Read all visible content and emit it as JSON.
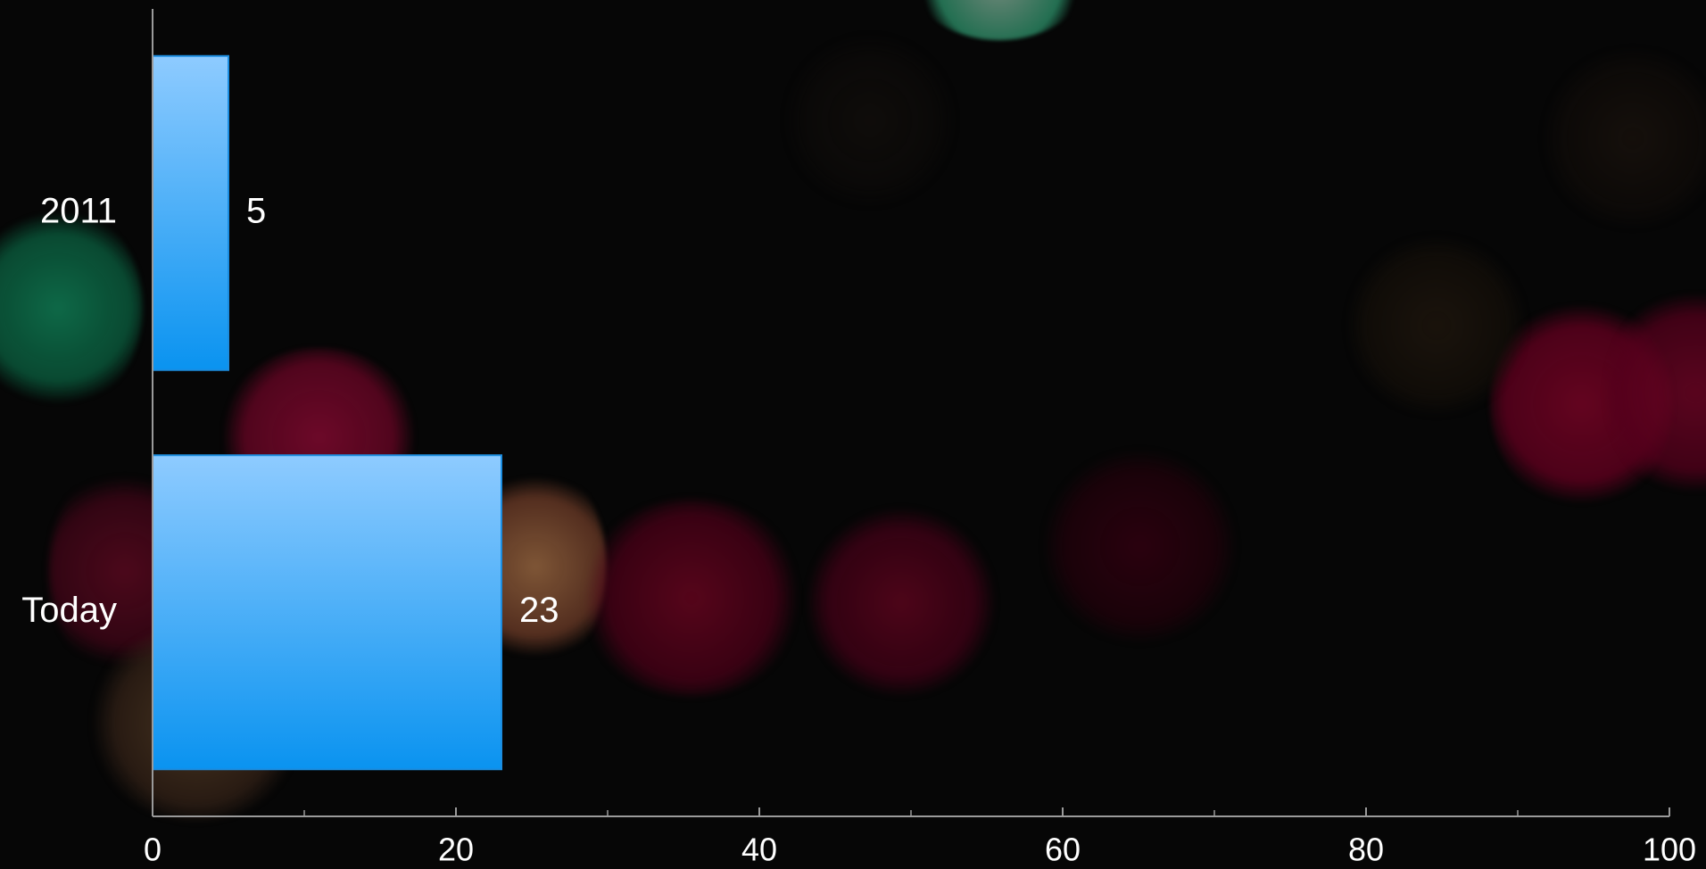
{
  "chart_data": {
    "type": "bar",
    "orientation": "horizontal",
    "categories": [
      "2011",
      "Today"
    ],
    "values": [
      5,
      23
    ],
    "data_labels": [
      "5",
      "23"
    ],
    "xlim": [
      0,
      100
    ],
    "x_ticks": [
      0,
      20,
      40,
      60,
      80,
      100
    ],
    "x_tick_labels": [
      "0",
      "20",
      "40",
      "60",
      "80",
      "100"
    ],
    "x_minor_ticks": [
      10,
      30,
      50,
      70,
      90
    ],
    "grid": false,
    "legend": "none",
    "bar_color_top": "#8ecbff",
    "bar_color_bottom": "#0a93f0",
    "bar_border_color": "#1b8de0",
    "axis_color": "#9a9a9a",
    "text_color": "#ffffff",
    "background_color": "#060606"
  }
}
